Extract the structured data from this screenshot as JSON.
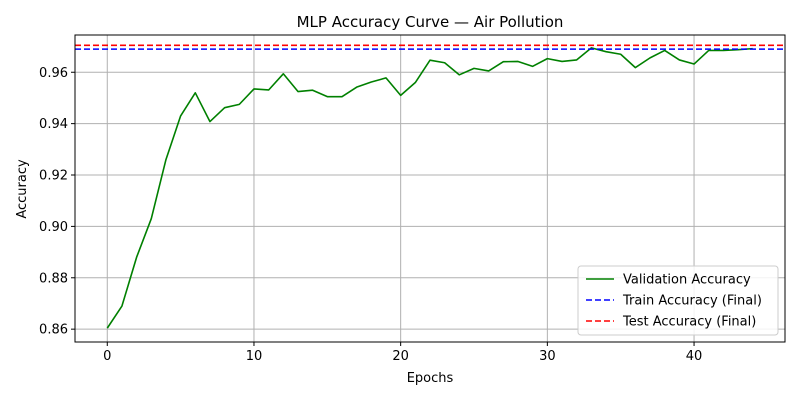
{
  "chart_data": {
    "type": "line",
    "title": "MLP Accuracy Curve — Air Pollution",
    "xlabel": "Epochs",
    "ylabel": "Accuracy",
    "xlim": [
      -2.2,
      46.2
    ],
    "ylim": [
      0.855,
      0.9745
    ],
    "xticks": [
      0,
      10,
      20,
      30,
      40
    ],
    "yticks": [
      0.86,
      0.88,
      0.9,
      0.92,
      0.94,
      0.96
    ],
    "ytick_labels": [
      "0.86",
      "0.88",
      "0.90",
      "0.92",
      "0.94",
      "0.96"
    ],
    "grid": true,
    "legend_position": "bottom-right",
    "series": [
      {
        "name": "Validation Accuracy",
        "style": "solid",
        "color": "#008000",
        "x": [
          0,
          1,
          2,
          3,
          4,
          5,
          6,
          7,
          8,
          9,
          10,
          11,
          12,
          13,
          14,
          15,
          16,
          17,
          18,
          19,
          20,
          21,
          22,
          23,
          24,
          25,
          26,
          27,
          28,
          29,
          30,
          31,
          32,
          33,
          34,
          35,
          36,
          37,
          38,
          39,
          40,
          41,
          42,
          43,
          44
        ],
        "values": [
          0.8604,
          0.869,
          0.888,
          0.903,
          0.926,
          0.943,
          0.952,
          0.9408,
          0.9462,
          0.9475,
          0.9535,
          0.9531,
          0.9594,
          0.9525,
          0.953,
          0.9505,
          0.9505,
          0.9542,
          0.9562,
          0.9578,
          0.951,
          0.956,
          0.9647,
          0.9637,
          0.959,
          0.9615,
          0.9605,
          0.9641,
          0.9642,
          0.9623,
          0.9653,
          0.9642,
          0.9648,
          0.9695,
          0.968,
          0.967,
          0.9618,
          0.9656,
          0.9685,
          0.9648,
          0.9632,
          0.9685,
          0.9685,
          0.9688,
          0.9692
        ]
      },
      {
        "name": "Train Accuracy (Final)",
        "style": "dashed-horizontal",
        "color": "#0000ff",
        "value": 0.969
      },
      {
        "name": "Test Accuracy (Final)",
        "style": "dashed-horizontal",
        "color": "#ff0000",
        "value": 0.9705
      }
    ],
    "grid_color": "#b0b0b0"
  }
}
